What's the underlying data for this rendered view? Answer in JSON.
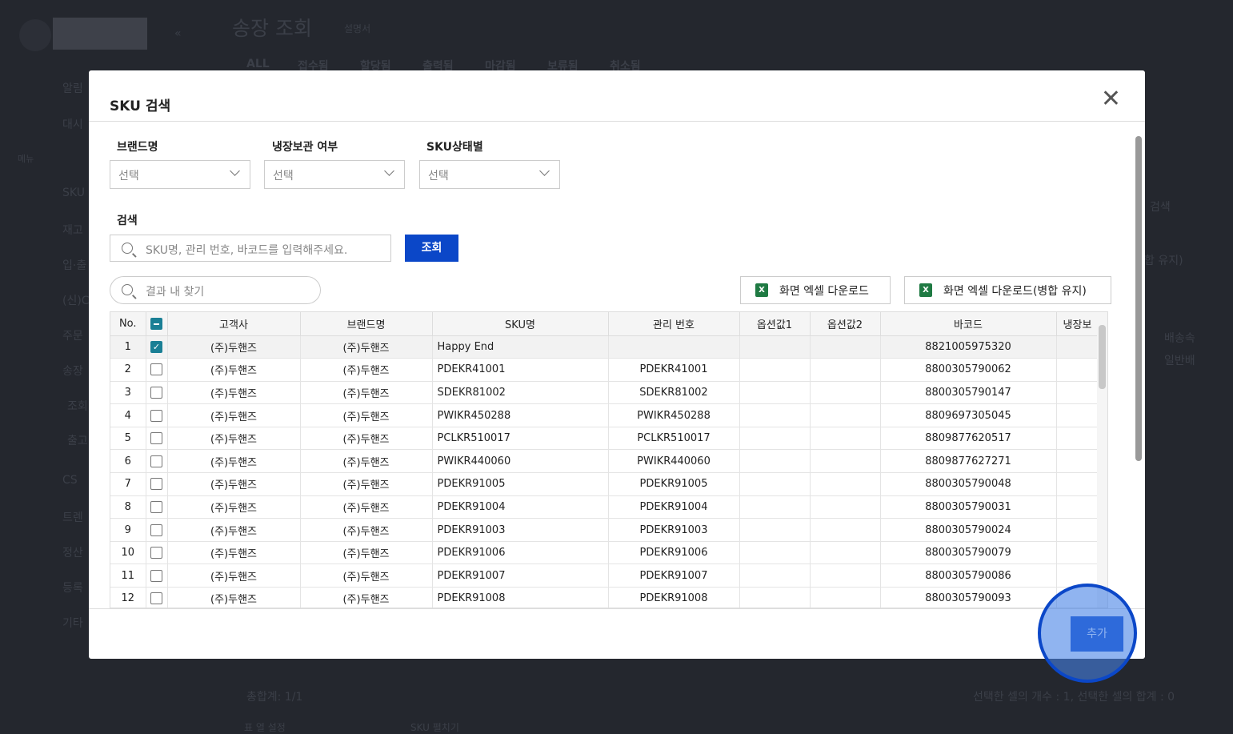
{
  "background": {
    "page_title": "송장 조회",
    "manual_link": "설명서",
    "tabs": [
      "ALL",
      "접수됨",
      "할당됨",
      "출력됨",
      "마감됨",
      "보류됨",
      "취소됨"
    ],
    "sidebar": [
      "알림",
      "대시",
      "SKU",
      "재고",
      "입·출",
      "(신)C",
      "주문",
      "송장",
      "조회",
      "출고",
      "CS",
      "트렌",
      "정산",
      "등록",
      "기타"
    ],
    "menu_header": "메뉴",
    "right_texts": [
      "검색",
      "합 유지)",
      "배송속",
      "일반배"
    ],
    "total": "총합계: 1/1",
    "selection_info": "선택한 셀의 개수 : 1, 선택한 셀의 합계 : 0",
    "column_settings": "표 열 설정",
    "sku_expand": "SKU 펼치기"
  },
  "modal": {
    "title": "SKU 검색",
    "close_icon": "close-icon",
    "filters": [
      {
        "label": "브랜드명",
        "value": "선택"
      },
      {
        "label": "냉장보관 여부",
        "value": "선택"
      },
      {
        "label": "SKU상태별",
        "value": "선택"
      }
    ],
    "search_label": "검색",
    "search_placeholder": "SKU명, 관리 번호, 바코드를 입력해주세요.",
    "search_button": "조회",
    "find_placeholder": "결과 내 찾기",
    "excel_download": "화면 엑셀 다운로드",
    "excel_download_merged": "화면 엑셀 다운로드(병합 유지)",
    "columns": [
      "No.",
      "",
      "고객사",
      "브랜드명",
      "SKU명",
      "관리 번호",
      "옵션값1",
      "옵션값2",
      "바코드",
      "냉장보"
    ],
    "rows": [
      {
        "no": "1",
        "checked": true,
        "client": "(주)두핸즈",
        "brand": "(주)두핸즈",
        "sku": "Happy End",
        "code": "",
        "opt1": "",
        "opt2": "",
        "barcode": "8821005975320"
      },
      {
        "no": "2",
        "checked": false,
        "client": "(주)두핸즈",
        "brand": "(주)두핸즈",
        "sku": "PDEKR41001",
        "code": "PDEKR41001",
        "opt1": "",
        "opt2": "",
        "barcode": "8800305790062"
      },
      {
        "no": "3",
        "checked": false,
        "client": "(주)두핸즈",
        "brand": "(주)두핸즈",
        "sku": "SDEKR81002",
        "code": "SDEKR81002",
        "opt1": "",
        "opt2": "",
        "barcode": "8800305790147"
      },
      {
        "no": "4",
        "checked": false,
        "client": "(주)두핸즈",
        "brand": "(주)두핸즈",
        "sku": "PWIKR450288",
        "code": "PWIKR450288",
        "opt1": "",
        "opt2": "",
        "barcode": "8809697305045"
      },
      {
        "no": "5",
        "checked": false,
        "client": "(주)두핸즈",
        "brand": "(주)두핸즈",
        "sku": "PCLKR510017",
        "code": "PCLKR510017",
        "opt1": "",
        "opt2": "",
        "barcode": "8809877620517"
      },
      {
        "no": "6",
        "checked": false,
        "client": "(주)두핸즈",
        "brand": "(주)두핸즈",
        "sku": "PWIKR440060",
        "code": "PWIKR440060",
        "opt1": "",
        "opt2": "",
        "barcode": "8809877627271"
      },
      {
        "no": "7",
        "checked": false,
        "client": "(주)두핸즈",
        "brand": "(주)두핸즈",
        "sku": "PDEKR91005",
        "code": "PDEKR91005",
        "opt1": "",
        "opt2": "",
        "barcode": "8800305790048"
      },
      {
        "no": "8",
        "checked": false,
        "client": "(주)두핸즈",
        "brand": "(주)두핸즈",
        "sku": "PDEKR91004",
        "code": "PDEKR91004",
        "opt1": "",
        "opt2": "",
        "barcode": "8800305790031"
      },
      {
        "no": "9",
        "checked": false,
        "client": "(주)두핸즈",
        "brand": "(주)두핸즈",
        "sku": "PDEKR91003",
        "code": "PDEKR91003",
        "opt1": "",
        "opt2": "",
        "barcode": "8800305790024"
      },
      {
        "no": "10",
        "checked": false,
        "client": "(주)두핸즈",
        "brand": "(주)두핸즈",
        "sku": "PDEKR91006",
        "code": "PDEKR91006",
        "opt1": "",
        "opt2": "",
        "barcode": "8800305790079"
      },
      {
        "no": "11",
        "checked": false,
        "client": "(주)두핸즈",
        "brand": "(주)두핸즈",
        "sku": "PDEKR91007",
        "code": "PDEKR91007",
        "opt1": "",
        "opt2": "",
        "barcode": "8800305790086"
      },
      {
        "no": "12",
        "checked": false,
        "client": "(주)두핸즈",
        "brand": "(주)두핸즈",
        "sku": "PDEKR91008",
        "code": "PDEKR91008",
        "opt1": "",
        "opt2": "",
        "barcode": "8800305790093"
      }
    ],
    "add_button": "추가"
  },
  "colors": {
    "primary": "#0b47c8",
    "checkbox": "#1a7f95",
    "excel": "#1f7a43",
    "highlight": "#4682e6"
  }
}
